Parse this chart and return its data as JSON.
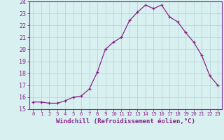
{
  "x": [
    0,
    1,
    2,
    3,
    4,
    5,
    6,
    7,
    8,
    9,
    10,
    11,
    12,
    13,
    14,
    15,
    16,
    17,
    18,
    19,
    20,
    21,
    22,
    23
  ],
  "y": [
    15.6,
    15.6,
    15.5,
    15.5,
    15.7,
    16.0,
    16.1,
    16.7,
    18.1,
    20.0,
    20.6,
    21.0,
    22.4,
    23.1,
    23.7,
    23.4,
    23.7,
    22.7,
    22.3,
    21.4,
    20.6,
    19.5,
    17.8,
    17.0
  ],
  "line_color": "#882288",
  "marker": "+",
  "marker_size": 3,
  "linewidth": 0.9,
  "markeredgewidth": 0.9,
  "xlabel": "Windchill (Refroidissement éolien,°C)",
  "xlabel_fontsize": 6.5,
  "bg_color": "#d8f0f0",
  "grid_color": "#b8d8d8",
  "tick_label_color": "#882288",
  "axis_color": "#882288",
  "ylim": [
    15,
    24
  ],
  "xlim": [
    -0.5,
    23.5
  ],
  "yticks": [
    15,
    16,
    17,
    18,
    19,
    20,
    21,
    22,
    23,
    24
  ],
  "xticks": [
    0,
    1,
    2,
    3,
    4,
    5,
    6,
    7,
    8,
    9,
    10,
    11,
    12,
    13,
    14,
    15,
    16,
    17,
    18,
    19,
    20,
    21,
    22,
    23
  ],
  "ytick_fontsize": 6.0,
  "xtick_fontsize": 5.2
}
